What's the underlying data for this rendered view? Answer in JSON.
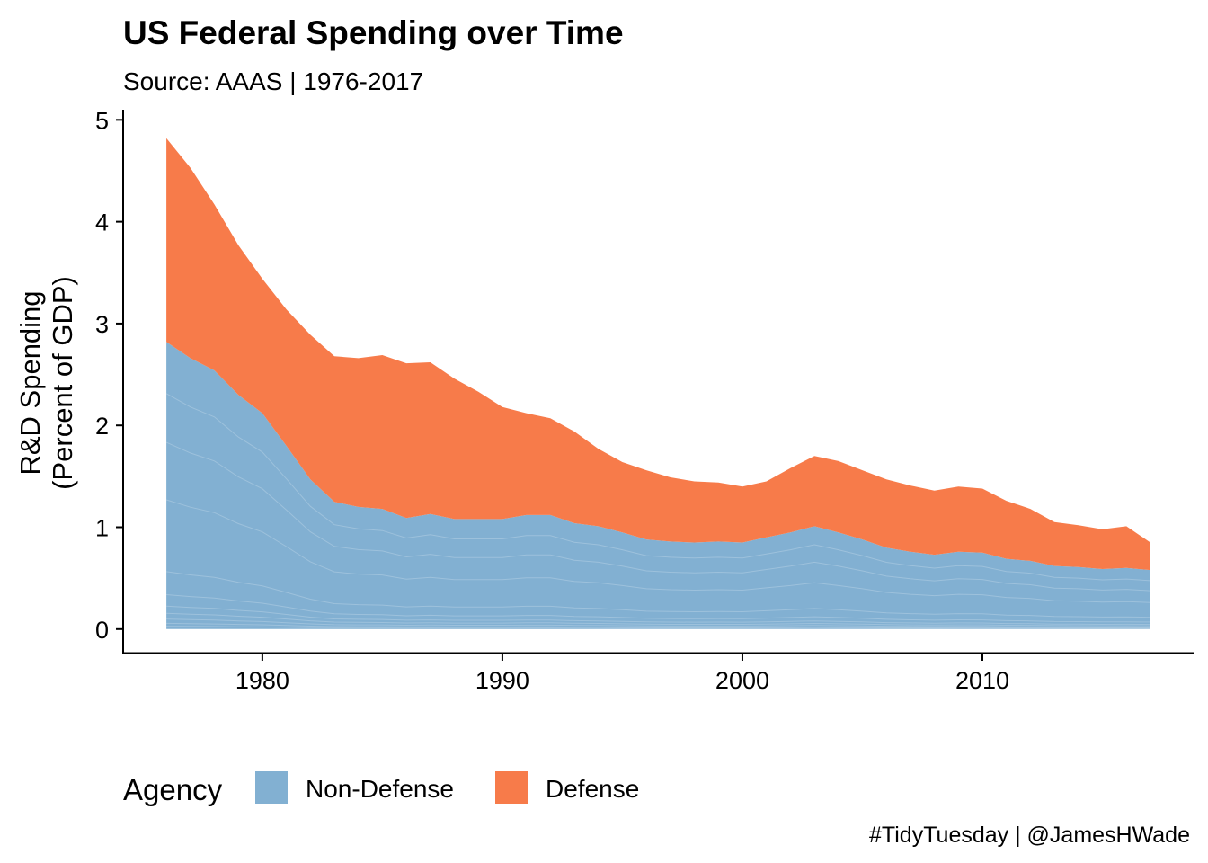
{
  "chart_data": {
    "type": "area",
    "stacked": true,
    "title": "US Federal Spending over Time",
    "subtitle": "Source: AAAS | 1976-2017",
    "xlabel": "",
    "ylabel": "R&D Spending\n(Percent of GDP)",
    "xlim": [
      1974.2,
      2018.8
    ],
    "ylim": [
      -0.24,
      5.1
    ],
    "x_ticks": [
      1980,
      1990,
      2000,
      2010
    ],
    "y_ticks": [
      0,
      1,
      2,
      3,
      4,
      5
    ],
    "grid": false,
    "legend_position": "bottom-left",
    "legend_title": "Agency",
    "x": [
      1976,
      1977,
      1978,
      1979,
      1980,
      1981,
      1982,
      1983,
      1984,
      1985,
      1986,
      1987,
      1988,
      1989,
      1990,
      1991,
      1992,
      1993,
      1994,
      1995,
      1996,
      1997,
      1998,
      1999,
      2000,
      2001,
      2002,
      2003,
      2004,
      2005,
      2006,
      2007,
      2008,
      2009,
      2010,
      2011,
      2012,
      2013,
      2014,
      2015,
      2016,
      2017
    ],
    "series": [
      {
        "name": "Non-Defense",
        "color": "#82B0D2",
        "values": [
          2.82,
          2.66,
          2.54,
          2.3,
          2.12,
          1.8,
          1.47,
          1.25,
          1.2,
          1.18,
          1.09,
          1.13,
          1.08,
          1.08,
          1.08,
          1.12,
          1.12,
          1.04,
          1.01,
          0.95,
          0.88,
          0.86,
          0.85,
          0.86,
          0.85,
          0.9,
          0.95,
          1.01,
          0.95,
          0.88,
          0.8,
          0.76,
          0.73,
          0.76,
          0.75,
          0.69,
          0.67,
          0.62,
          0.61,
          0.59,
          0.6,
          0.58
        ]
      },
      {
        "name": "Defense",
        "color": "#F77B4A",
        "values": [
          2.0,
          1.87,
          1.63,
          1.47,
          1.32,
          1.34,
          1.42,
          1.43,
          1.46,
          1.51,
          1.52,
          1.49,
          1.38,
          1.25,
          1.1,
          1.0,
          0.95,
          0.9,
          0.76,
          0.69,
          0.68,
          0.63,
          0.6,
          0.58,
          0.55,
          0.55,
          0.63,
          0.69,
          0.7,
          0.68,
          0.67,
          0.65,
          0.63,
          0.64,
          0.63,
          0.57,
          0.51,
          0.43,
          0.41,
          0.39,
          0.41,
          0.27
        ]
      }
    ],
    "caption": "#TidyTuesday | @JamesHWade"
  }
}
